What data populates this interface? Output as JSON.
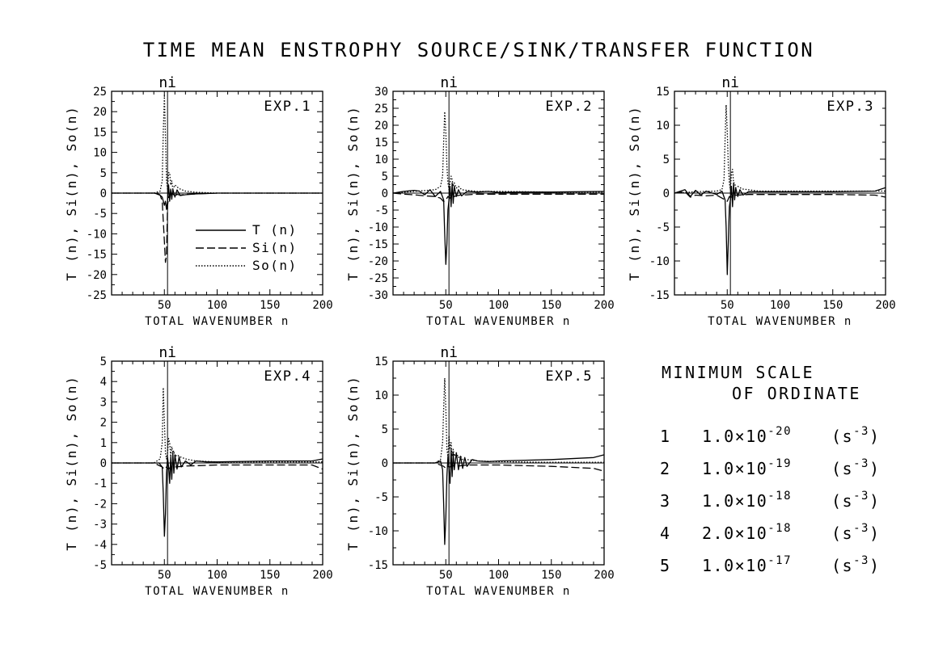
{
  "title": "TIME MEAN ENSTROPHY SOURCE/SINK/TRANSFER FUNCTION",
  "legend": [
    {
      "label": "T (n)",
      "style": "solid"
    },
    {
      "label": "Si(n)",
      "style": "dashed"
    },
    {
      "label": "So(n)",
      "style": "dotted"
    }
  ],
  "note": {
    "heading1": "MINIMUM SCALE",
    "heading2": "OF ORDINATE",
    "rows": [
      {
        "exp": "1",
        "mant": "1.0",
        "exp10": "-20"
      },
      {
        "exp": "2",
        "mant": "1.0",
        "exp10": "-19"
      },
      {
        "exp": "3",
        "mant": "1.0",
        "exp10": "-18"
      },
      {
        "exp": "4",
        "mant": "2.0",
        "exp10": "-18"
      },
      {
        "exp": "5",
        "mant": "1.0",
        "exp10": "-17"
      }
    ],
    "unit_prefix": "(s",
    "unit_exp": "-3",
    "unit_suffix": ")"
  },
  "chart_data": [
    {
      "type": "line",
      "panel_label": "EXP.1",
      "marker_label": "ni",
      "marker_x": 53,
      "xlabel": "TOTAL WAVENUMBER n",
      "ylabel": "T (n), Si(n), So(n)",
      "xlim": [
        0,
        200
      ],
      "xticks": [
        50,
        100,
        150,
        200
      ],
      "ylim": [
        -25,
        25
      ],
      "yticks": [
        -25,
        -20,
        -15,
        -10,
        -5,
        0,
        5,
        10,
        15,
        20,
        25
      ],
      "show_legend": true,
      "series": [
        {
          "name": "T (n)",
          "style": "solid",
          "x": [
            0,
            40,
            45,
            48,
            50,
            51,
            52,
            53,
            54,
            55,
            56,
            57,
            58,
            60,
            62,
            65,
            70,
            80,
            100,
            120,
            150,
            200
          ],
          "y": [
            0,
            0,
            -0.3,
            -1,
            -3,
            -2,
            -4,
            -2,
            2,
            -2,
            1,
            -1.5,
            1,
            -1,
            0.8,
            -0.6,
            -0.4,
            -0.2,
            0,
            0,
            0,
            0
          ]
        },
        {
          "name": "Si(n)",
          "style": "dashed",
          "x": [
            0,
            40,
            46,
            48,
            50,
            51,
            52,
            53,
            54,
            55,
            56,
            58,
            60,
            62,
            65,
            70,
            80,
            100,
            120,
            200
          ],
          "y": [
            0,
            0,
            -0.5,
            -2,
            -12,
            -17,
            -15,
            -3,
            -1,
            -0.5,
            -0.3,
            -0.2,
            -0.8,
            -0.3,
            -0.5,
            -0.3,
            -0.2,
            0,
            0,
            0
          ]
        },
        {
          "name": "So(n)",
          "style": "dotted",
          "x": [
            0,
            40,
            46,
            48,
            49,
            50,
            51,
            52,
            53,
            54,
            55,
            56,
            57,
            58,
            60,
            62,
            65,
            70,
            80,
            100,
            150,
            200
          ],
          "y": [
            0,
            0,
            0.5,
            3,
            15,
            24,
            14,
            3,
            1,
            5,
            5,
            2,
            3,
            1,
            2,
            1.5,
            1,
            0.5,
            0.2,
            0,
            0,
            0
          ]
        }
      ]
    },
    {
      "type": "line",
      "panel_label": "EXP.2",
      "marker_label": "ni",
      "marker_x": 53,
      "xlabel": "TOTAL WAVENUMBER n",
      "ylabel": "T (n), Si(n), So(n)",
      "xlim": [
        0,
        200
      ],
      "xticks": [
        50,
        100,
        150,
        200
      ],
      "ylim": [
        -30,
        30
      ],
      "yticks": [
        -30,
        -25,
        -20,
        -15,
        -10,
        -5,
        0,
        5,
        10,
        15,
        20,
        25,
        30
      ],
      "show_legend": false,
      "series": [
        {
          "name": "T (n)",
          "style": "solid",
          "x": [
            0,
            10,
            20,
            25,
            30,
            35,
            40,
            45,
            48,
            49,
            50,
            51,
            52,
            53,
            54,
            55,
            56,
            57,
            58,
            60,
            62,
            65,
            70,
            80,
            90,
            100,
            120,
            150,
            200
          ],
          "y": [
            0,
            0.5,
            0.8,
            0.6,
            -0.5,
            1,
            -1,
            0.5,
            -2,
            -12,
            -21,
            -15,
            -5,
            -2,
            2,
            -4,
            3,
            -3,
            2,
            -1,
            1,
            -0.8,
            0.5,
            0.3,
            0.5,
            0.2,
            0.3,
            0.3,
            0.5
          ]
        },
        {
          "name": "Si(n)",
          "style": "dashed",
          "x": [
            0,
            10,
            20,
            30,
            40,
            45,
            48,
            50,
            52,
            54,
            56,
            58,
            60,
            65,
            70,
            80,
            100,
            150,
            200
          ],
          "y": [
            0,
            -0.3,
            -0.5,
            -0.8,
            -1,
            -1.5,
            -2.5,
            -2,
            -1,
            -1.5,
            -0.5,
            -1,
            -0.8,
            -0.5,
            -0.5,
            -0.3,
            -0.3,
            -0.3,
            -0.3
          ]
        },
        {
          "name": "So(n)",
          "style": "dotted",
          "x": [
            0,
            20,
            40,
            45,
            47,
            48,
            49,
            50,
            51,
            52,
            53,
            54,
            55,
            56,
            57,
            58,
            60,
            62,
            65,
            70,
            80,
            100,
            150,
            200
          ],
          "y": [
            0,
            0.5,
            1,
            2,
            5,
            15,
            24,
            18,
            8,
            3,
            1,
            3,
            5,
            4,
            2,
            3,
            1.5,
            2,
            1,
            0.8,
            0.5,
            0.5,
            0.3,
            0.3
          ]
        }
      ]
    },
    {
      "type": "line",
      "panel_label": "EXP.3",
      "marker_label": "ni",
      "marker_x": 53,
      "xlabel": "TOTAL WAVENUMBER n",
      "ylabel": "T (n), Si(n), So(n)",
      "xlim": [
        0,
        200
      ],
      "xticks": [
        50,
        100,
        150,
        200
      ],
      "ylim": [
        -15,
        15
      ],
      "yticks": [
        -15,
        -10,
        -5,
        0,
        5,
        10,
        15
      ],
      "show_legend": false,
      "series": [
        {
          "name": "T (n)",
          "style": "solid",
          "x": [
            0,
            10,
            15,
            20,
            25,
            30,
            40,
            45,
            48,
            49,
            50,
            51,
            52,
            53,
            54,
            55,
            56,
            57,
            58,
            60,
            62,
            65,
            70,
            80,
            100,
            150,
            190,
            200
          ],
          "y": [
            0,
            0.5,
            -0.5,
            0.4,
            -0.3,
            0.3,
            -0.2,
            0.3,
            -1,
            -5,
            -12,
            -7,
            -2,
            -1,
            1,
            -2,
            1.5,
            -1,
            0.8,
            -0.5,
            0.5,
            -0.3,
            0.2,
            0.2,
            0.2,
            0.2,
            0.3,
            0.8
          ]
        },
        {
          "name": "Si(n)",
          "style": "dashed",
          "x": [
            0,
            10,
            15,
            20,
            30,
            40,
            48,
            50,
            52,
            54,
            56,
            60,
            70,
            100,
            150,
            190,
            200
          ],
          "y": [
            0,
            0.2,
            -0.6,
            -0.3,
            -0.4,
            -0.3,
            -1,
            -1.2,
            -0.5,
            -0.6,
            -0.3,
            -0.3,
            -0.2,
            -0.2,
            -0.2,
            -0.3,
            -0.6
          ]
        },
        {
          "name": "So(n)",
          "style": "dotted",
          "x": [
            0,
            20,
            40,
            45,
            47,
            48,
            49,
            50,
            51,
            52,
            53,
            54,
            55,
            56,
            57,
            58,
            60,
            62,
            65,
            70,
            80,
            100,
            150,
            200
          ],
          "y": [
            0,
            0.2,
            0.3,
            0.5,
            2,
            8,
            13,
            9,
            4,
            1.5,
            0.5,
            3,
            3.5,
            1.5,
            1.5,
            0.8,
            1,
            0.8,
            0.6,
            0.5,
            0.3,
            0.3,
            0.3,
            0.3
          ]
        }
      ]
    },
    {
      "type": "line",
      "panel_label": "EXP.4",
      "marker_label": "ni",
      "marker_x": 53,
      "xlabel": "TOTAL WAVENUMBER n",
      "ylabel": "T (n), Si(n), So(n)",
      "xlim": [
        0,
        200
      ],
      "xticks": [
        50,
        100,
        150,
        200
      ],
      "ylim": [
        -5,
        5
      ],
      "yticks": [
        -5,
        -4,
        -3,
        -2,
        -1,
        0,
        1,
        2,
        3,
        4,
        5
      ],
      "show_legend": false,
      "series": [
        {
          "name": "T (n)",
          "style": "solid",
          "x": [
            0,
            10,
            20,
            30,
            40,
            45,
            48,
            49,
            50,
            51,
            52,
            53,
            54,
            55,
            56,
            57,
            58,
            59,
            60,
            62,
            64,
            66,
            70,
            75,
            80,
            90,
            100,
            150,
            190,
            200
          ],
          "y": [
            0,
            0,
            0,
            0,
            0,
            0,
            -0.2,
            -1.5,
            -3.6,
            -2.5,
            -0.5,
            0.3,
            -0.2,
            -1,
            0.3,
            -0.8,
            0.5,
            -0.5,
            0.4,
            -0.3,
            0.3,
            -0.2,
            0.1,
            -0.1,
            0.1,
            0.05,
            0.05,
            0.1,
            0.1,
            0.2
          ]
        },
        {
          "name": "Si(n)",
          "style": "dashed",
          "x": [
            0,
            40,
            48,
            50,
            52,
            54,
            56,
            60,
            70,
            100,
            150,
            190,
            200
          ],
          "y": [
            0,
            0,
            -0.2,
            -0.3,
            -0.2,
            -0.3,
            -0.2,
            -0.2,
            -0.15,
            -0.1,
            -0.1,
            -0.1,
            -0.3
          ]
        },
        {
          "name": "So(n)",
          "style": "dotted",
          "x": [
            0,
            40,
            46,
            48,
            49,
            50,
            51,
            52,
            53,
            54,
            55,
            56,
            57,
            58,
            59,
            60,
            62,
            65,
            70,
            80,
            100,
            150,
            200
          ],
          "y": [
            0,
            0,
            0.2,
            1,
            3.7,
            2,
            0.5,
            0.2,
            0.5,
            1.2,
            1,
            0.3,
            0.8,
            0.5,
            0.6,
            0.3,
            0.4,
            0.3,
            0.2,
            0.1,
            0.05,
            0.05,
            0.05
          ]
        }
      ]
    },
    {
      "type": "line",
      "panel_label": "EXP.5",
      "marker_label": "ni",
      "marker_x": 53,
      "xlabel": "TOTAL WAVENUMBER n",
      "ylabel": "T (n), Si(n), So(n)",
      "xlim": [
        0,
        200
      ],
      "xticks": [
        50,
        100,
        150,
        200
      ],
      "ylim": [
        -15,
        15
      ],
      "yticks": [
        -15,
        -10,
        -5,
        0,
        5,
        10,
        15
      ],
      "show_legend": false,
      "series": [
        {
          "name": "T (n)",
          "style": "solid",
          "x": [
            0,
            30,
            40,
            45,
            47,
            48,
            49,
            50,
            51,
            52,
            53,
            54,
            55,
            56,
            57,
            58,
            60,
            62,
            64,
            66,
            68,
            70,
            75,
            80,
            90,
            100,
            150,
            190,
            200
          ],
          "y": [
            0,
            0,
            0,
            0.3,
            -1,
            -6,
            -12,
            -8,
            -2,
            1,
            -1,
            -3,
            2,
            -2,
            1.5,
            -1,
            1.5,
            -1,
            1,
            -0.8,
            0.8,
            -0.5,
            0.5,
            0.3,
            0.2,
            0.3,
            0.5,
            0.8,
            1.2
          ]
        },
        {
          "name": "Si(n)",
          "style": "dashed",
          "x": [
            0,
            40,
            48,
            50,
            52,
            54,
            56,
            60,
            70,
            80,
            100,
            150,
            190,
            200
          ],
          "y": [
            0,
            0,
            -0.5,
            -0.8,
            -0.5,
            -0.6,
            -0.4,
            -0.5,
            -0.3,
            -0.3,
            -0.3,
            -0.5,
            -0.8,
            -1.2
          ]
        },
        {
          "name": "So(n)",
          "style": "dotted",
          "x": [
            0,
            40,
            45,
            47,
            48,
            49,
            50,
            51,
            52,
            53,
            54,
            55,
            56,
            57,
            58,
            60,
            62,
            64,
            66,
            70,
            80,
            100,
            150,
            200
          ],
          "y": [
            0,
            0,
            0.5,
            3,
            8,
            12.5,
            8,
            2,
            1,
            4,
            2,
            3,
            1,
            2,
            1,
            1.5,
            0.8,
            1,
            0.5,
            0.5,
            0.3,
            0.2,
            0.1,
            0.1
          ]
        }
      ]
    }
  ]
}
